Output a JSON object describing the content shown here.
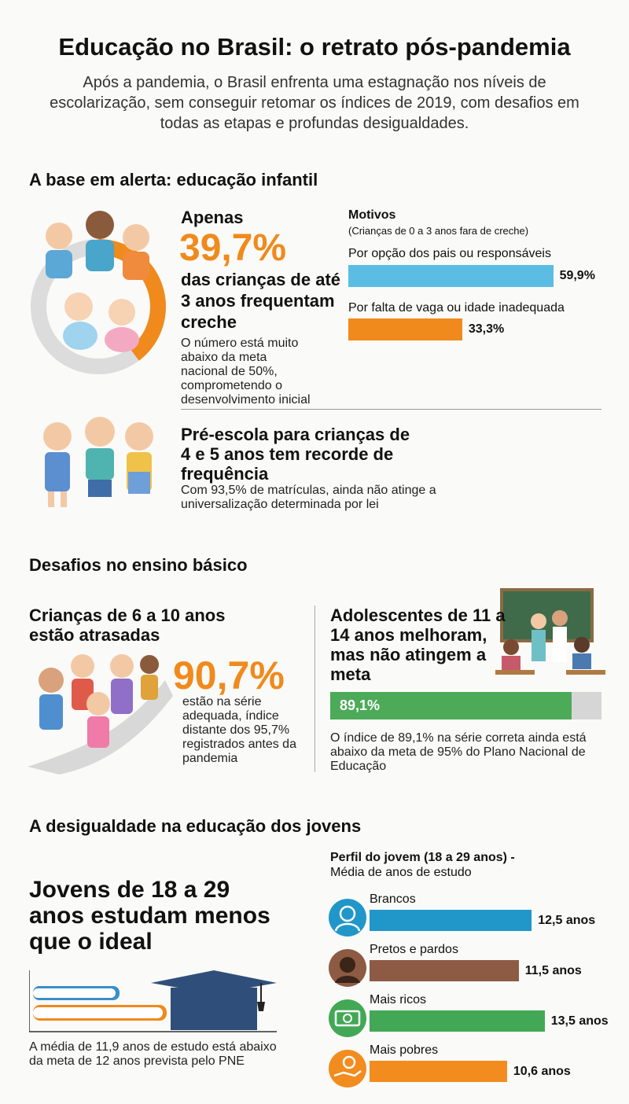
{
  "header": {
    "title": "Educação no Brasil: o retrato pós-pandemia",
    "subtitle": "Após a pandemia, o Brasil enfrenta uma estagnação nos níveis de escolarização, sem conseguir retomar os índices de 2019, com desafios em todas as etapas e profundas desigualdades."
  },
  "infantil": {
    "heading": "A base em alerta: educação infantil",
    "creche": {
      "lead": "Apenas",
      "value": 39.7,
      "value_label": "39,7%",
      "text": "das crianças de até 3 anos frequentam creche",
      "note": "O número está muito abaixo da meta nacional de 50%, comprometendo o desenvolvimento inicial"
    },
    "motivos": {
      "title": "Motivos",
      "subtitle": "(Crianças de 0 a 3 anos fara de creche)",
      "items": [
        {
          "label": "Por opção dos pais ou responsáveis",
          "value": 59.9,
          "value_label": "59,9%",
          "color": "#5bbde3"
        },
        {
          "label": "Por falta de vaga ou idade inadequada",
          "value": 33.3,
          "value_label": "33,3%",
          "color": "#f08a1c"
        }
      ]
    },
    "preescola": {
      "title": "Pré-escola para crianças de 4 e 5 anos tem recorde de frequência",
      "note": "Com 93,5% de matrículas, ainda não atinge a universalização determinada por lei"
    }
  },
  "basico": {
    "heading": "Desafios no ensino básico",
    "criancas": {
      "title": "Crianças de 6 a 10 anos estão atrasadas",
      "value_label": "90,7%",
      "note": "estão na série adequada, índice distante dos 95,7% registrados antes da pandemia"
    },
    "adolescentes": {
      "title": "Adolescentes de 11 a 14 anos melhoram, mas não atingem a meta",
      "value": 89.1,
      "value_label": "89,1%",
      "color": "#4caa58",
      "note": "O índice de 89,1% na série correta ainda está abaixo da meta de 95% do Plano Nacional de Educação"
    }
  },
  "jovens": {
    "heading": "A desigualdade na educação dos jovens",
    "title": "Jovens de 18 a 29 anos estudam menos que o ideal",
    "note": "A média de 11,9 anos de estudo está abaixo da meta de 12 anos prevista pelo PNE",
    "perfil": {
      "title": "Perfil do jovem (18 a 29 anos) -",
      "subtitle": "Média de anos de estudo",
      "items": [
        {
          "label": "Brancos",
          "value": 12.5,
          "value_label": "12,5 anos",
          "color": "#2196c9"
        },
        {
          "label": "Pretos e pardos",
          "value": 11.5,
          "value_label": "11,5 anos",
          "color": "#8d5a44"
        },
        {
          "label": "Mais ricos",
          "value": 13.5,
          "value_label": "13,5 anos",
          "color": "#43a856"
        },
        {
          "label": "Mais pobres",
          "value": 10.6,
          "value_label": "10,6 anos",
          "color": "#f28c1f"
        }
      ]
    }
  }
}
